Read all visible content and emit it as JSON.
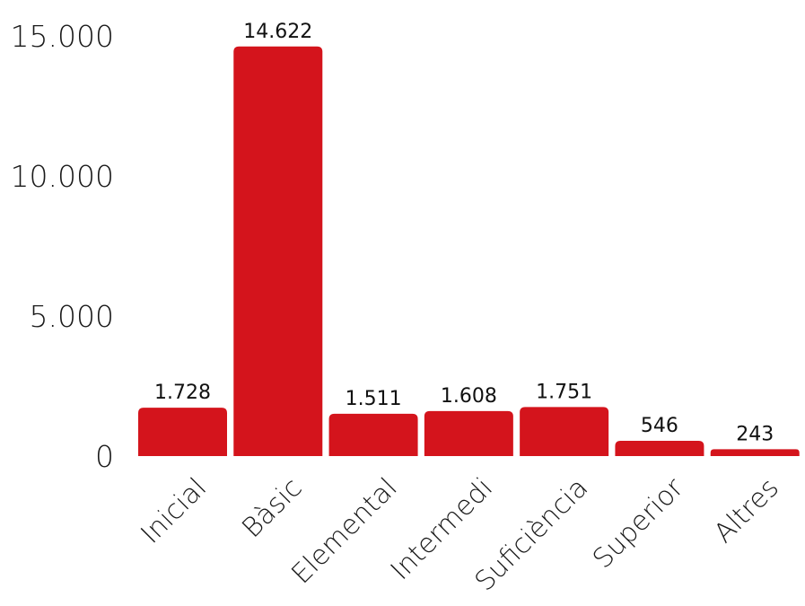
{
  "chart_data": {
    "type": "bar",
    "categories": [
      "Inicial",
      "Bàsic",
      "Elemental",
      "Intermedi",
      "Suficiència",
      "Superior",
      "Altres"
    ],
    "values": [
      1728,
      14622,
      1511,
      1608,
      1751,
      546,
      243
    ],
    "value_labels": [
      "1.728",
      "14.622",
      "1.511",
      "1.608",
      "1.751",
      "546",
      "243"
    ],
    "y_ticks": [
      0,
      5000,
      10000,
      15000
    ],
    "y_tick_labels": [
      "0",
      "5.000",
      "10.000",
      "15.000"
    ],
    "ylim": [
      0,
      15000
    ],
    "title": "",
    "xlabel": "",
    "ylabel": "",
    "grid": false,
    "bar_color": "#d4141c"
  }
}
